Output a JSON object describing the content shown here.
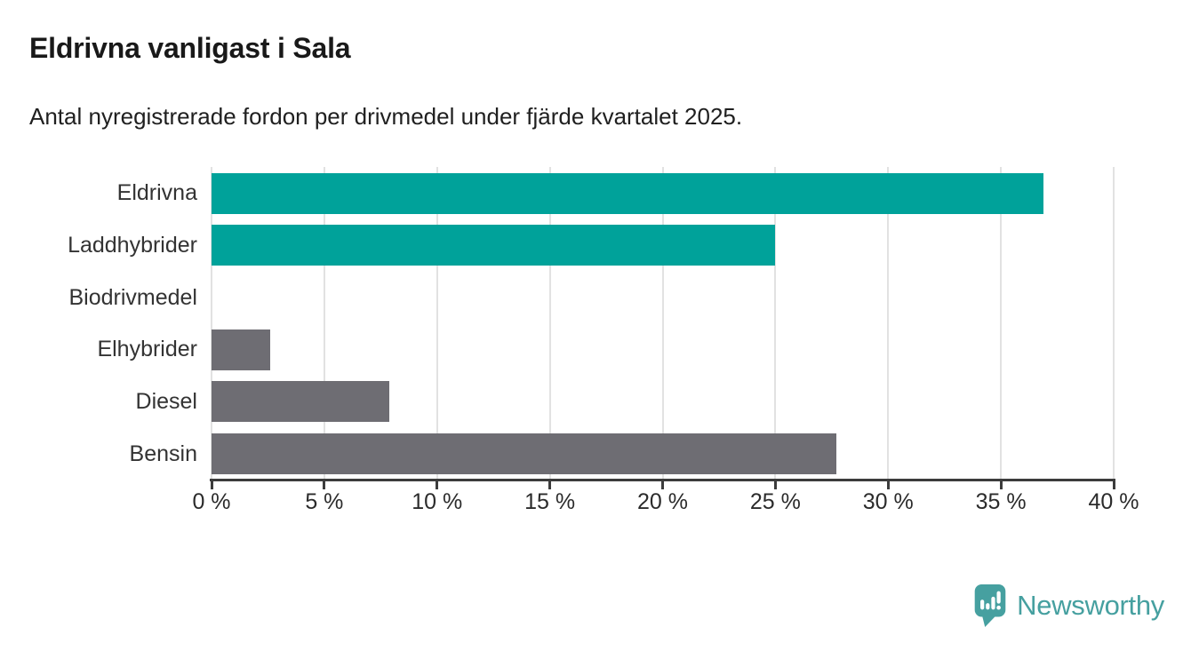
{
  "header": {
    "title": "Eldrivna vanligast i Sala",
    "subtitle": "Antal nyregistrerade fordon per drivmedel under fjärde kvartalet 2025."
  },
  "chart_data": {
    "type": "bar",
    "orientation": "horizontal",
    "categories": [
      "Eldrivna",
      "Laddhybrider",
      "Biodrivmedel",
      "Elhybrider",
      "Diesel",
      "Bensin"
    ],
    "values": [
      36.9,
      25.0,
      0,
      2.6,
      7.9,
      27.7
    ],
    "unit": "%",
    "title": "Eldrivna vanligast i Sala",
    "subtitle": "Antal nyregistrerade fordon per drivmedel under fjärde kvartalet 2025.",
    "xlabel": "",
    "ylabel": "",
    "xlim": [
      0,
      40
    ],
    "x_ticks": [
      0,
      5,
      10,
      15,
      20,
      25,
      30,
      35,
      40
    ],
    "x_tick_labels": [
      "0 %",
      "5 %",
      "10 %",
      "15 %",
      "20 %",
      "25 %",
      "30 %",
      "35 %",
      "40 %"
    ],
    "bar_colors": [
      "#00a29a",
      "#00a29a",
      "#00a29a",
      "#6e6d73",
      "#6e6d73",
      "#6e6d73"
    ],
    "grid": true,
    "legend": false
  },
  "branding": {
    "logo_text": "Newsworthy",
    "logo_icon": "speech-bubble-bar-chart-icon"
  },
  "colors": {
    "accent_teal": "#00a29a",
    "neutral_gray": "#6e6d73",
    "gridline": "#e2e2e2",
    "axis": "#3c3c3c",
    "title_text": "#191919",
    "label_text": "#333333",
    "logo_teal": "#46a0a0"
  }
}
